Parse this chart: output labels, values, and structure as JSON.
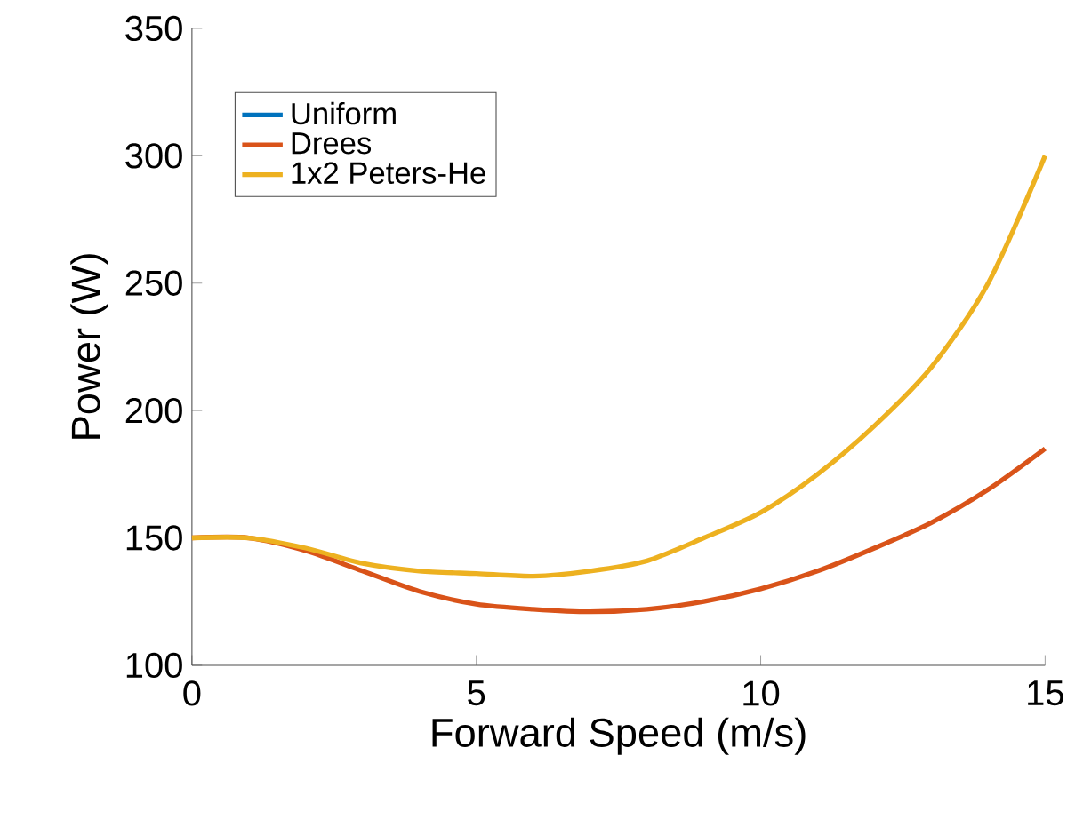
{
  "chart_data": {
    "type": "line",
    "xlabel": "Forward Speed (m/s)",
    "ylabel": "Power (W)",
    "x": [
      0,
      1,
      2,
      3,
      4,
      5,
      6,
      7,
      8,
      9,
      10,
      11,
      12,
      13,
      14,
      15
    ],
    "series": [
      {
        "name": "Uniform",
        "color": "#0072bd",
        "values": [
          null,
          null,
          null,
          null,
          null,
          null,
          null,
          null,
          null,
          null,
          null,
          null,
          null,
          null,
          null,
          null
        ]
      },
      {
        "name": "Drees",
        "color": "#d95319",
        "values": [
          150,
          150,
          145,
          137,
          129,
          124,
          122,
          121,
          122,
          125,
          130,
          137,
          146,
          156,
          169,
          185
        ]
      },
      {
        "name": "1x2 Peters-He",
        "color": "#edb120",
        "values": [
          150,
          150,
          146,
          140,
          137,
          136,
          135,
          137,
          141,
          150,
          160,
          175,
          194,
          217,
          250,
          300
        ]
      }
    ],
    "xlim": [
      0,
      15
    ],
    "xticks": [
      0,
      5,
      10,
      15
    ],
    "ylim": [
      100,
      350
    ],
    "yticks": [
      100,
      150,
      200,
      250,
      300,
      350
    ],
    "grid": false,
    "legend": "top left",
    "marker": "none",
    "line_style": "solid"
  }
}
